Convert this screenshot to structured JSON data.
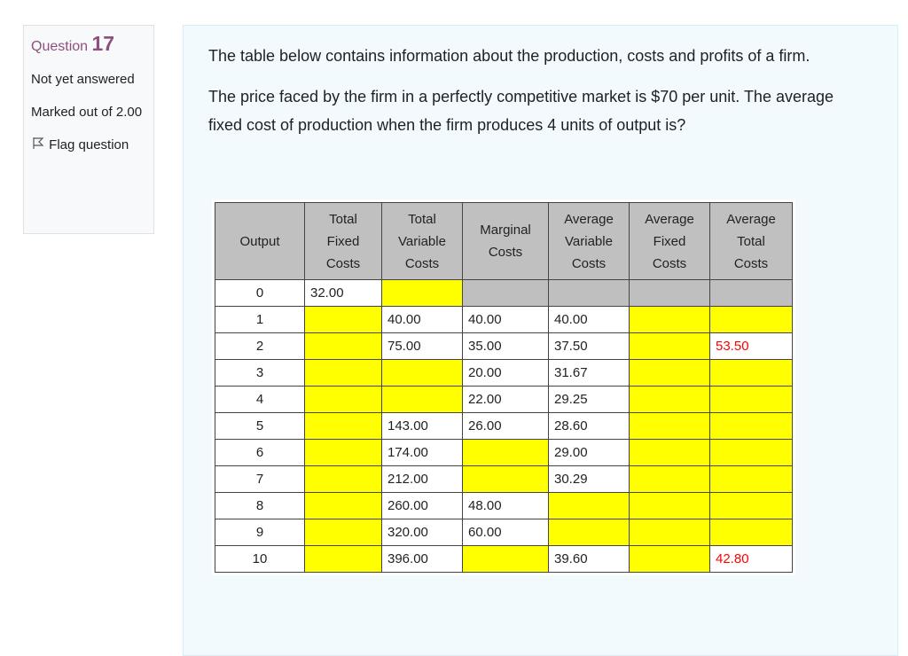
{
  "info": {
    "question_label": "Question",
    "question_number": "17",
    "state": "Not yet answered",
    "marks": "Marked out of 2.00",
    "flag": "Flag question"
  },
  "question": {
    "paragraphs": [
      "The table below contains information about the production, costs and profits of a firm.",
      "The price faced by the firm in a perfectly competitive market is $70 per unit. The average fixed cost of production when the firm produces 4 units of output is?"
    ]
  },
  "table": {
    "headers": [
      [
        "Output"
      ],
      [
        "Total",
        "Fixed",
        "Costs"
      ],
      [
        "Total",
        "Variable",
        "Costs"
      ],
      [
        "Marginal",
        "Costs"
      ],
      [
        "Average",
        "Variable",
        "Costs"
      ],
      [
        "Average",
        "Fixed",
        "Costs"
      ],
      [
        "Average",
        "Total",
        "Costs"
      ]
    ],
    "rows": [
      [
        "0",
        "32.00",
        null,
        null,
        null,
        null,
        null
      ],
      [
        "1",
        null,
        "40.00",
        "40.00",
        "40.00",
        null,
        null
      ],
      [
        "2",
        null,
        "75.00",
        "35.00",
        "37.50",
        null,
        "53.50"
      ],
      [
        "3",
        null,
        null,
        "20.00",
        "31.67",
        null,
        null
      ],
      [
        "4",
        null,
        null,
        "22.00",
        "29.25",
        null,
        null
      ],
      [
        "5",
        null,
        "143.00",
        "26.00",
        "28.60",
        null,
        null
      ],
      [
        "6",
        null,
        "174.00",
        null,
        "29.00",
        null,
        null
      ],
      [
        "7",
        null,
        "212.00",
        null,
        "30.29",
        null,
        null
      ],
      [
        "8",
        null,
        "260.00",
        "48.00",
        null,
        null,
        null
      ],
      [
        "9",
        null,
        "320.00",
        "60.00",
        null,
        null,
        null
      ],
      [
        "10",
        null,
        "396.00",
        null,
        "39.60",
        null,
        "42.80"
      ]
    ]
  }
}
